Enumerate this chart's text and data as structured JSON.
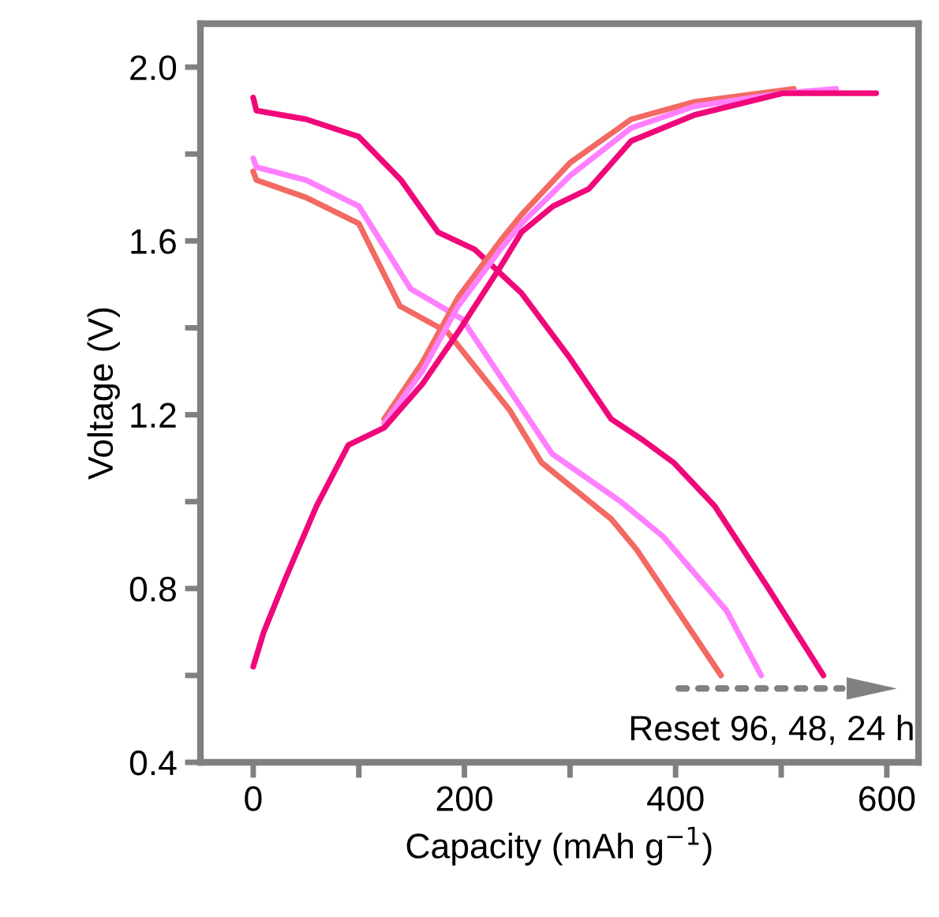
{
  "chart_data": {
    "type": "line",
    "xlabel": "Capacity (mAh g$^{−1}$)",
    "ylabel": "Voltage (V)",
    "xlim": [
      -50,
      630
    ],
    "ylim": [
      0.4,
      2.1
    ],
    "xticks": [
      0,
      {
        "value": 100,
        "label": null
      },
      200,
      {
        "value": 300,
        "label": null
      },
      400,
      {
        "value": 500,
        "label": null
      },
      600
    ],
    "yticks": [
      0.4,
      {
        "value": 0.6,
        "label": null
      },
      0.8,
      {
        "value": 1.0,
        "label": null
      },
      1.2,
      {
        "value": 1.4,
        "label": null
      },
      1.6,
      {
        "value": 1.8,
        "label": null
      },
      {
        "value": 2.0,
        "label": "2.0"
      }
    ],
    "grid": false,
    "legend": false,
    "marker": "none",
    "line_style": "solid",
    "annotations": [
      "Reset 96, 48, 24 h"
    ],
    "series": [
      {
        "color": "#f26a63",
        "x": [
          0,
          3,
          50,
          100,
          139,
          184,
          243,
          273,
          339,
          363,
          443
        ],
        "values": [
          1.76,
          1.74,
          1.7,
          1.64,
          1.45,
          1.39,
          1.21,
          1.09,
          0.96,
          0.89,
          0.6
        ]
      },
      {
        "color": "#ff80ff",
        "x": [
          0,
          3,
          50,
          100,
          149,
          198,
          283,
          348,
          388,
          448,
          481
        ],
        "values": [
          1.79,
          1.77,
          1.74,
          1.68,
          1.49,
          1.42,
          1.11,
          1.0,
          0.92,
          0.75,
          0.6
        ]
      },
      {
        "color": "#f0087a",
        "x": [
          0,
          3,
          50,
          100,
          140,
          175,
          210,
          254,
          300,
          339,
          370,
          398,
          437,
          488,
          540
        ],
        "values": [
          1.93,
          1.9,
          1.88,
          1.84,
          1.74,
          1.62,
          1.58,
          1.48,
          1.33,
          1.19,
          1.14,
          1.09,
          0.99,
          0.8,
          0.6
        ]
      },
      {
        "color": "#f26a63",
        "x": [
          124,
          160,
          194,
          234,
          254,
          300,
          358,
          418,
          512
        ],
        "values": [
          1.19,
          1.32,
          1.47,
          1.6,
          1.66,
          1.78,
          1.88,
          1.92,
          1.95
        ]
      },
      {
        "color": "#ff80ff",
        "x": [
          124,
          160,
          194,
          234,
          254,
          300,
          358,
          418,
          502,
          552
        ],
        "values": [
          1.18,
          1.3,
          1.45,
          1.58,
          1.64,
          1.75,
          1.86,
          1.91,
          1.94,
          1.95
        ]
      },
      {
        "color": "#f0087a",
        "x": [
          0,
          10,
          30,
          60,
          90,
          124,
          160,
          194,
          234,
          254,
          284,
          318,
          358,
          418,
          502,
          590
        ],
        "values": [
          0.62,
          0.7,
          0.82,
          0.99,
          1.13,
          1.17,
          1.27,
          1.39,
          1.54,
          1.62,
          1.68,
          1.72,
          1.83,
          1.89,
          1.94,
          1.94
        ]
      }
    ]
  }
}
